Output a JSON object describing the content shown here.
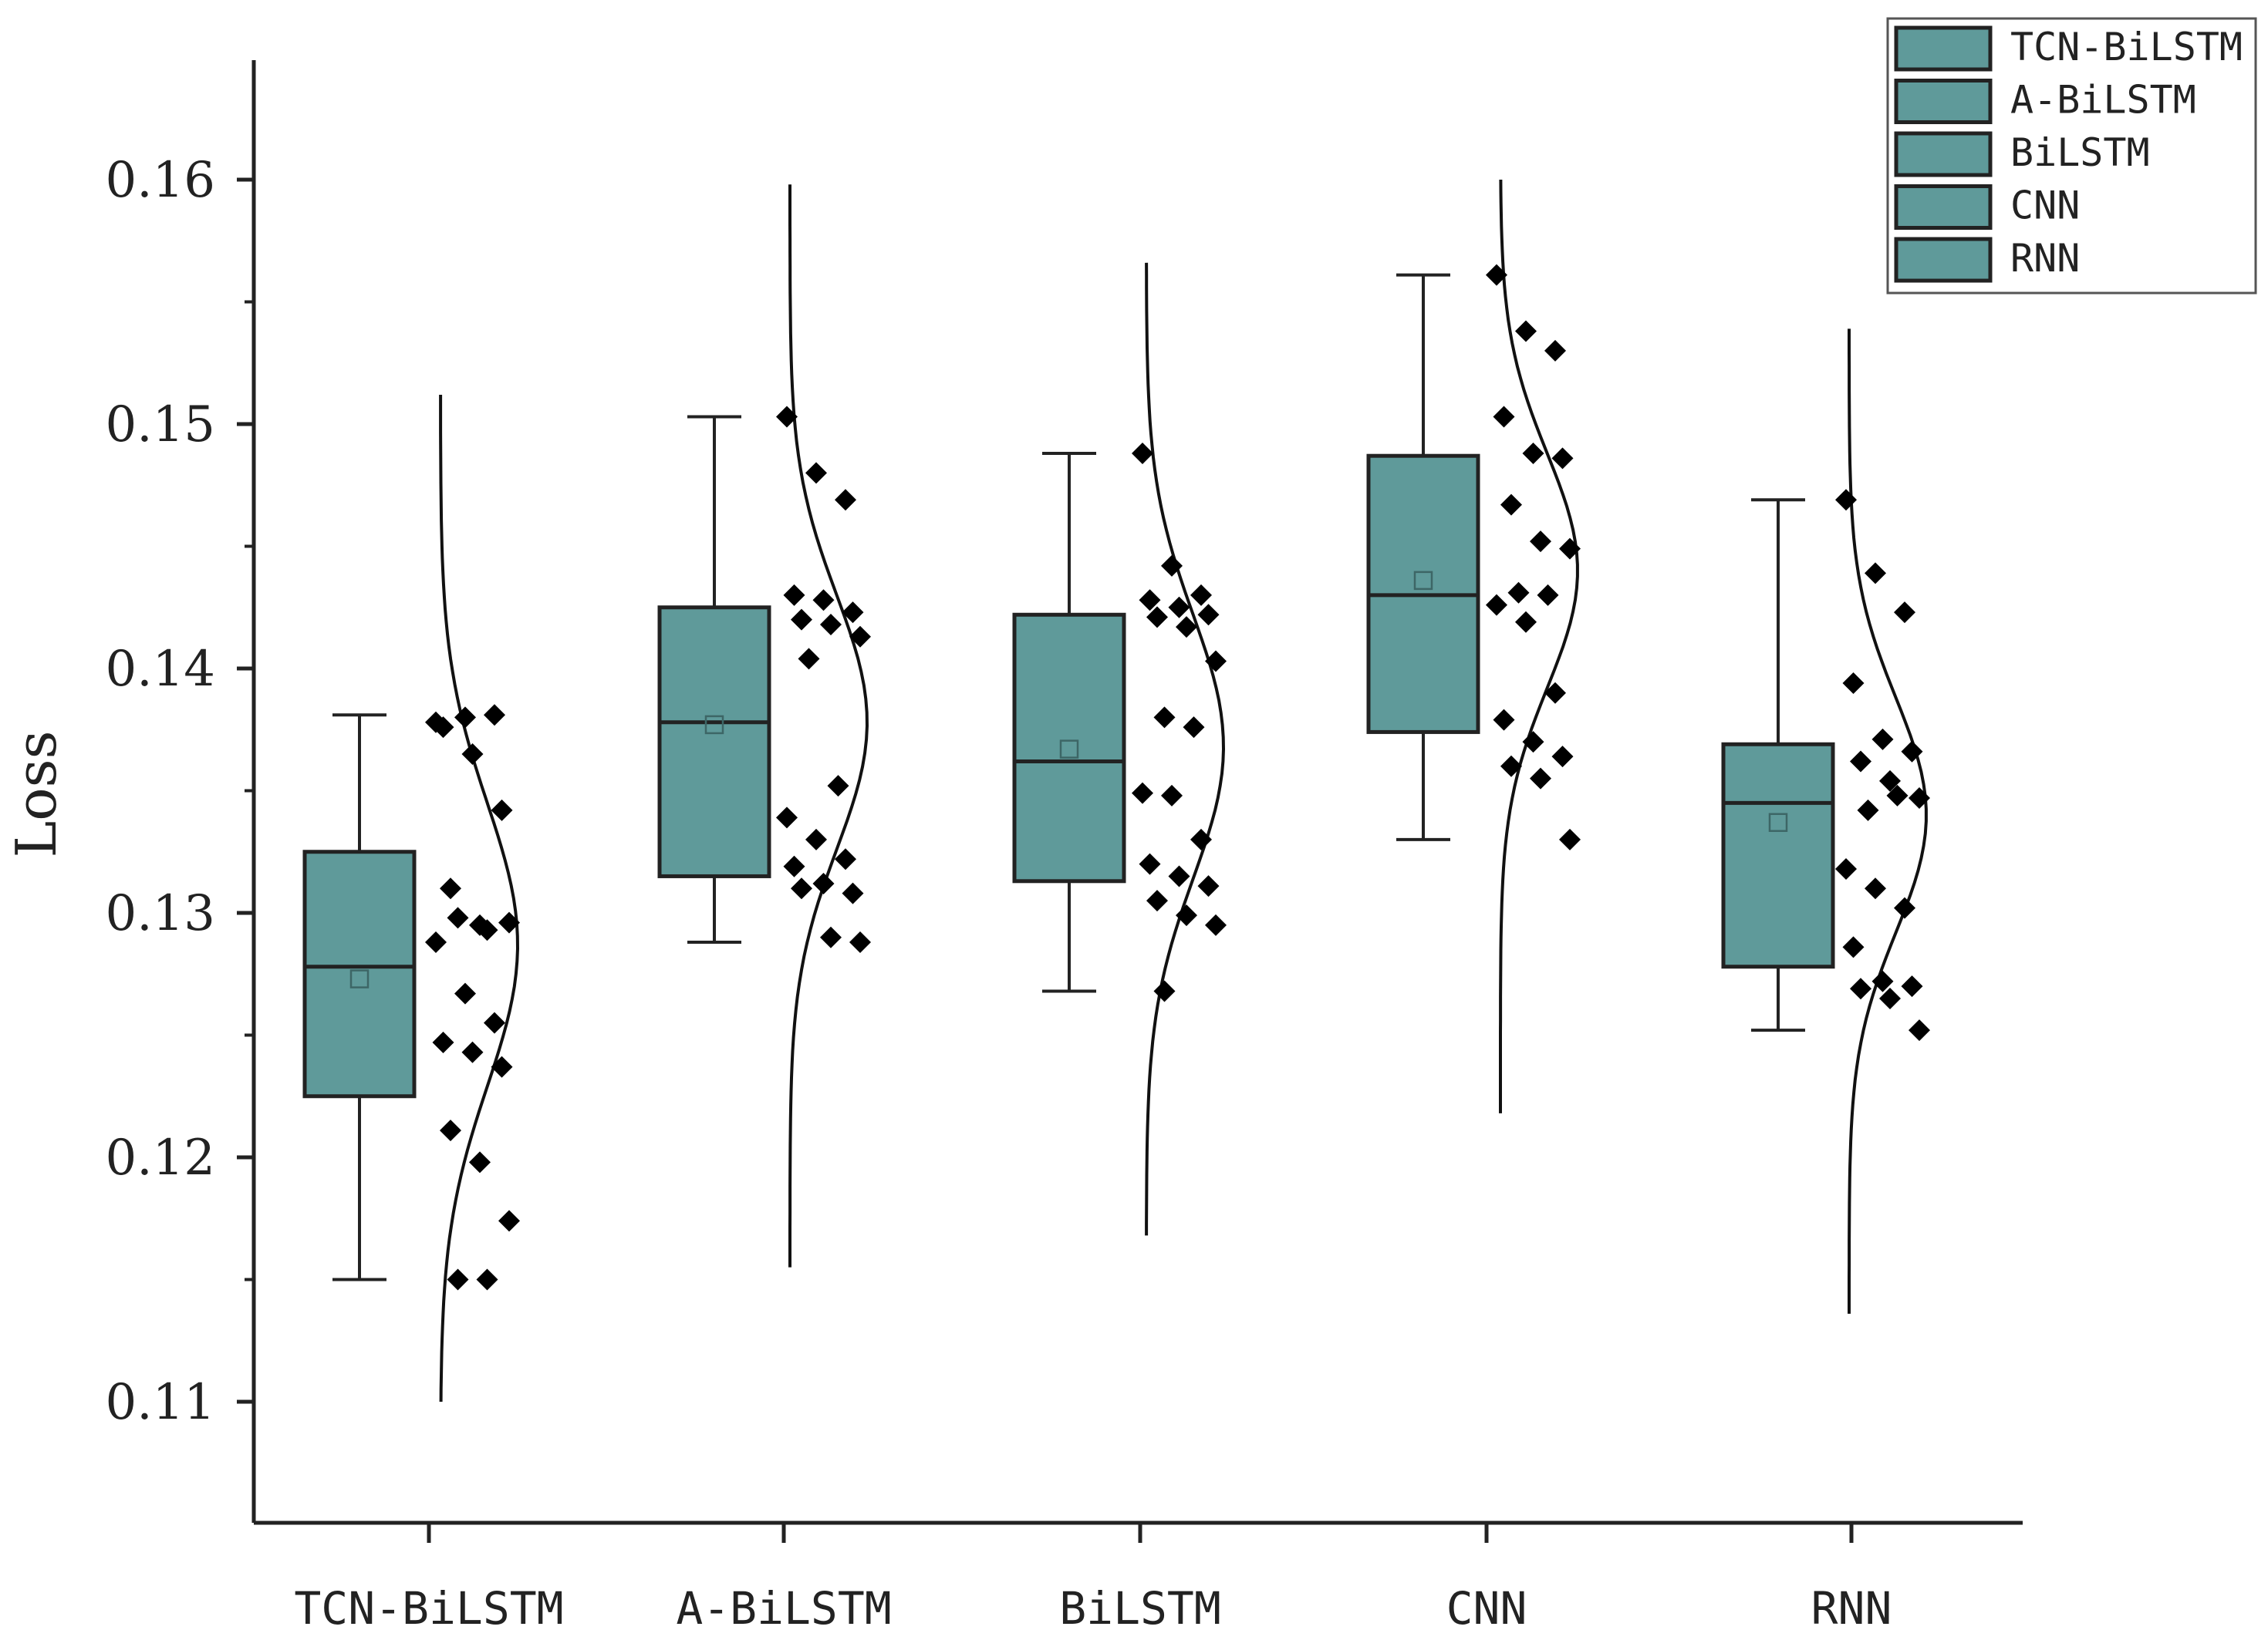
{
  "chart_data": {
    "type": "box",
    "title": "",
    "xlabel": "",
    "ylabel": "Loss",
    "ylim": [
      0.105,
      0.165
    ],
    "yticks": [
      0.11,
      0.12,
      0.13,
      0.14,
      0.15,
      0.16
    ],
    "ytick_labels": [
      "0.11",
      "0.12",
      "0.13",
      "0.14",
      "0.15",
      "0.16"
    ],
    "categories": [
      "TCN-BiLSTM",
      "A-BiLSTM",
      "BiLSTM",
      "CNN",
      "RNN"
    ],
    "box_color": "#5f9a9a",
    "legend": {
      "position": "top-right",
      "entries": [
        "TCN-BiLSTM",
        "A-BiLSTM",
        "BiLSTM",
        "CNN",
        "RNN"
      ]
    },
    "series": [
      {
        "name": "TCN-BiLSTM",
        "whisker_low": 0.115,
        "q1": 0.1225,
        "median": 0.1278,
        "q3": 0.1325,
        "whisker_high": 0.1381,
        "mean": 0.1273,
        "curve_range": [
          0.11,
          0.1512
        ],
        "curve_mean": 0.1287,
        "curve_sd": 0.0058,
        "points": [
          0.1378,
          0.138,
          0.1381,
          0.1376,
          0.1365,
          0.1342,
          0.131,
          0.1295,
          0.1296,
          0.1298,
          0.1293,
          0.1288,
          0.1267,
          0.1255,
          0.1247,
          0.1243,
          0.1237,
          0.1211,
          0.1198,
          0.1174,
          0.115,
          0.115
        ]
      },
      {
        "name": "A-BiLSTM",
        "whisker_low": 0.1288,
        "q1": 0.1315,
        "median": 0.1378,
        "q3": 0.1425,
        "whisker_high": 0.1503,
        "mean": 0.1377,
        "curve_range": [
          0.1155,
          0.1598
        ],
        "curve_mean": 0.1378,
        "curve_sd": 0.0052,
        "points": [
          0.1503,
          0.148,
          0.1469,
          0.143,
          0.1428,
          0.1423,
          0.142,
          0.1418,
          0.1413,
          0.1404,
          0.1352,
          0.1339,
          0.133,
          0.1322,
          0.1319,
          0.1312,
          0.1308,
          0.131,
          0.129,
          0.1288
        ]
      },
      {
        "name": "BiLSTM",
        "whisker_low": 0.1268,
        "q1": 0.1313,
        "median": 0.1362,
        "q3": 0.1422,
        "whisker_high": 0.1488,
        "mean": 0.1367,
        "curve_range": [
          0.1168,
          0.1566
        ],
        "curve_mean": 0.1368,
        "curve_sd": 0.0054,
        "points": [
          0.1488,
          0.1442,
          0.143,
          0.1428,
          0.1425,
          0.1422,
          0.1421,
          0.1417,
          0.1403,
          0.138,
          0.1376,
          0.1349,
          0.1348,
          0.133,
          0.132,
          0.1315,
          0.1311,
          0.1305,
          0.1299,
          0.1295,
          0.1268
        ]
      },
      {
        "name": "CNN",
        "whisker_low": 0.133,
        "q1": 0.1374,
        "median": 0.143,
        "q3": 0.1487,
        "whisker_high": 0.1561,
        "mean": 0.1436,
        "curve_range": [
          0.1218,
          0.16
        ],
        "curve_mean": 0.144,
        "curve_sd": 0.0048,
        "points": [
          0.1561,
          0.1538,
          0.153,
          0.1503,
          0.1488,
          0.1486,
          0.1467,
          0.1452,
          0.1449,
          0.1431,
          0.143,
          0.1426,
          0.1419,
          0.139,
          0.1379,
          0.137,
          0.1364,
          0.136,
          0.1355,
          0.133
        ]
      },
      {
        "name": "RNN",
        "whisker_low": 0.1252,
        "q1": 0.1278,
        "median": 0.1345,
        "q3": 0.1369,
        "whisker_high": 0.1469,
        "mean": 0.1337,
        "curve_range": [
          0.1136,
          0.1539
        ],
        "curve_mean": 0.134,
        "curve_sd": 0.0048,
        "points": [
          0.1469,
          0.1439,
          0.1423,
          0.1394,
          0.1371,
          0.1366,
          0.1362,
          0.1354,
          0.1347,
          0.1342,
          0.1348,
          0.1318,
          0.131,
          0.1302,
          0.1286,
          0.1272,
          0.127,
          0.1269,
          0.1265,
          0.1252
        ]
      }
    ]
  }
}
